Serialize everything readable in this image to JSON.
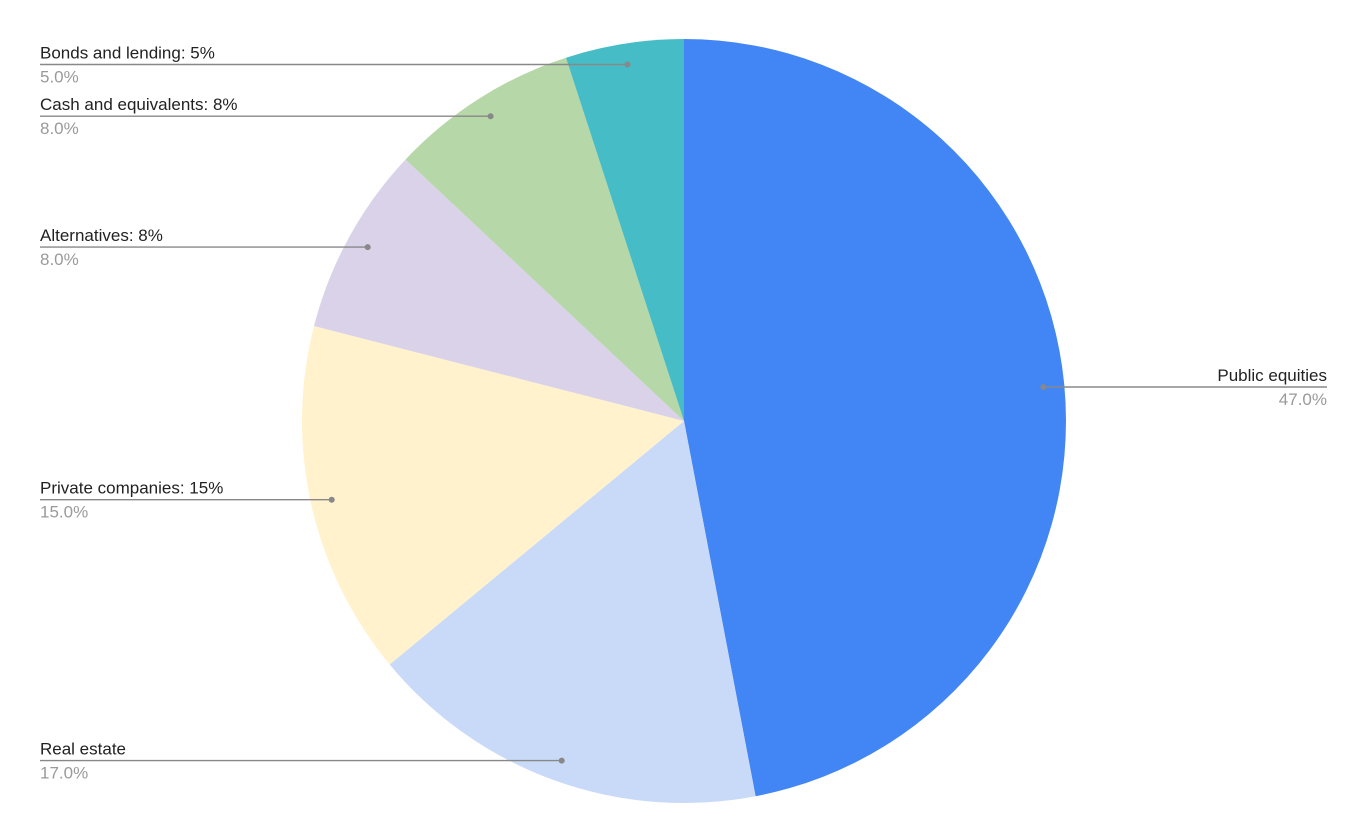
{
  "chart_data": {
    "type": "pie",
    "title": "",
    "start_angle_deg": 0,
    "direction": "clockwise",
    "legend": "none",
    "slices": [
      {
        "category": "Public equities",
        "label": "Public equities",
        "value": 47.0,
        "value_label": "47.0%",
        "color": "#4285f4",
        "label_side": "right"
      },
      {
        "category": "Real estate",
        "label": "Real estate",
        "value": 17.0,
        "value_label": "17.0%",
        "color": "#c9daf8",
        "label_side": "left"
      },
      {
        "category": "Private companies",
        "label": "Private companies: 15%",
        "value": 15.0,
        "value_label": "15.0%",
        "color": "#fff2cc",
        "label_side": "left"
      },
      {
        "category": "Alternatives",
        "label": "Alternatives: 8%",
        "value": 8.0,
        "value_label": "8.0%",
        "color": "#d9d2e9",
        "label_side": "left"
      },
      {
        "category": "Cash and equivalents",
        "label": "Cash and equivalents: 8%",
        "value": 8.0,
        "value_label": "8.0%",
        "color": "#b6d7a8",
        "label_side": "left"
      },
      {
        "category": "Bonds and lending",
        "label": "Bonds and lending: 5%",
        "value": 5.0,
        "value_label": "5.0%",
        "color": "#46bdc6",
        "label_side": "left"
      }
    ]
  }
}
